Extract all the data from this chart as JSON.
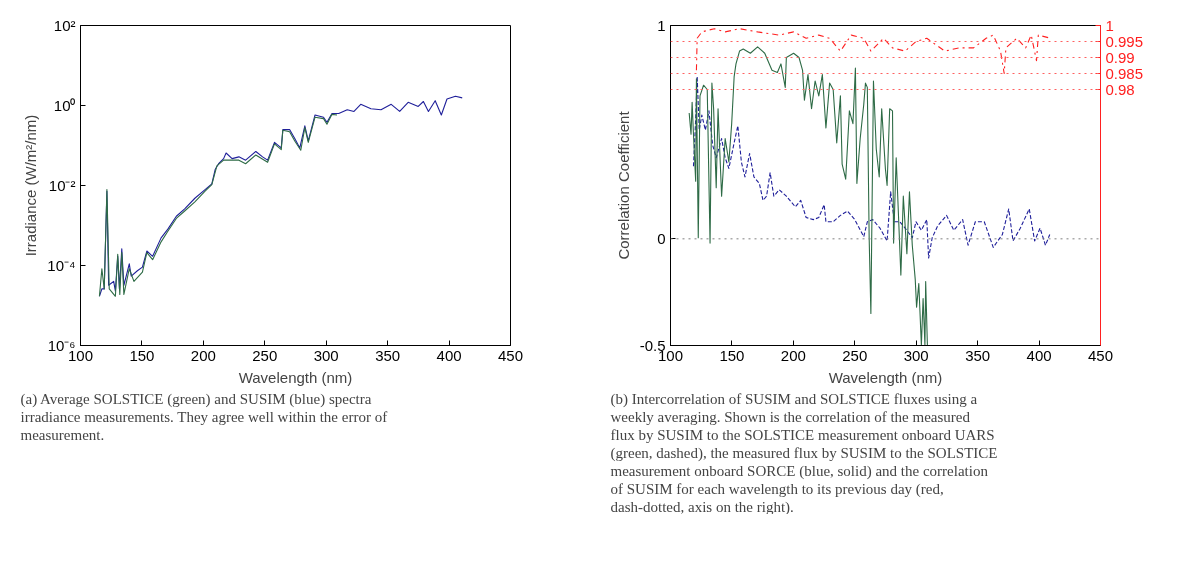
{
  "chart_data": [
    {
      "type": "line",
      "xlabel": "Wavelength (nm)",
      "ylabel": "Irradiance (W/m²/nm)",
      "log": "y",
      "grid": false,
      "line_style": "solid",
      "marker": "none",
      "xlim": [
        100,
        450
      ],
      "xticks": [
        100,
        150,
        200,
        250,
        300,
        350,
        400,
        450
      ],
      "ylim": [
        1e-06,
        100
      ],
      "yticks": [
        {
          "value": 1e-06,
          "label": "10⁻⁶"
        },
        {
          "value": 0.0001,
          "label": "10⁻⁴"
        },
        {
          "value": 0.01,
          "label": "10⁻²"
        },
        {
          "value": 1,
          "label": "10⁰"
        },
        {
          "value": 100,
          "label": "10²"
        }
      ],
      "series": [
        {
          "color": "#1f1f9a",
          "x": [
            115.4,
            117.4,
            119.3,
            121.5,
            122.9,
            127,
            128.4,
            130.3,
            131.7,
            133.6,
            135.3,
            139.7,
            141.3,
            146.3,
            150.4,
            154,
            158.7,
            165.6,
            171.1,
            178,
            184.8,
            193.1,
            201.4,
            206.9,
            209.6,
            212.4,
            216.5,
            218.5,
            223.4,
            228.9,
            234.4,
            242.7,
            248.2,
            252.3,
            257.9,
            263.4,
            264.7,
            270.2,
            274.4,
            278.5,
            282.6,
            285.4,
            290.9,
            297.8,
            300.6,
            304.7,
            310.2,
            317.1,
            322.6,
            328.1,
            336.4,
            344.6,
            352.9,
            359.8,
            366.7,
            374.9,
            379.1,
            383.2,
            388.7,
            393.7,
            398.3,
            405.2,
            410.7
          ],
          "values": [
            1.7e-05,
            2.6e-05,
            2.6e-05,
            0.0072,
            3.2e-05,
            4e-05,
            2.3e-05,
            0.00017,
            2.6e-05,
            0.00026,
            3.2e-05,
            0.00011,
            5.4e-05,
            7.4e-05,
            9.1e-05,
            0.00023,
            0.00017,
            0.00049,
            0.00081,
            0.0017,
            0.0026,
            0.0048,
            0.0079,
            0.011,
            0.025,
            0.035,
            0.047,
            0.065,
            0.047,
            0.052,
            0.043,
            0.071,
            0.052,
            0.043,
            0.12,
            0.087,
            0.25,
            0.25,
            0.15,
            0.087,
            0.31,
            0.13,
            0.58,
            0.51,
            0.38,
            0.63,
            0.63,
            0.78,
            0.71,
            1.07,
            0.83,
            0.78,
            1.07,
            0.71,
            1.2,
            0.95,
            1.26,
            0.71,
            1.32,
            0.58,
            1.45,
            1.7,
            1.55
          ]
        },
        {
          "color": "#2e6b46",
          "x": [
            115.4,
            117.4,
            119.3,
            121.5,
            123.4,
            128.4,
            130.3,
            132,
            133.6,
            135.3,
            139.7,
            143.5,
            150.4,
            154,
            158.7,
            165.6,
            171.1,
            178,
            184.8,
            193.1,
            201.4,
            206.9,
            211,
            216.5,
            223.4,
            228.9,
            234.4,
            242.7,
            252.3,
            257.9,
            263.4,
            264.7,
            270.2,
            274.4,
            279.3,
            282.6,
            285.4,
            290.9,
            297.8,
            300.6,
            304.7,
            308.8
          ],
          "values": [
            1.7e-05,
            8.3e-05,
            2.6e-05,
            0.0079,
            2.6e-05,
            1.7e-05,
            0.00019,
            1.9e-05,
            0.00021,
            1.9e-05,
            8.3e-05,
            4e-05,
            6.8e-05,
            0.00021,
            0.00014,
            0.00039,
            0.00072,
            0.0015,
            0.0023,
            0.0039,
            0.0072,
            0.0105,
            0.031,
            0.043,
            0.043,
            0.043,
            0.035,
            0.058,
            0.038,
            0.11,
            0.079,
            0.24,
            0.22,
            0.13,
            0.076,
            0.28,
            0.12,
            0.51,
            0.47,
            0.34,
            0.6,
            0.58
          ]
        }
      ],
      "annotations": [
        "(a) Average SOLSTICE (green) and SUSIM (blue) spectra irradiance measurements. They agree well within the error of measurement."
      ]
    },
    {
      "type": "line",
      "xlabel": "Wavelength (nm)",
      "ylabel": "Correlation Coefficient",
      "grid": false,
      "marker": "none",
      "xlim": [
        100,
        450
      ],
      "xticks": [
        100,
        150,
        200,
        250,
        300,
        350,
        400,
        450
      ],
      "ylim": [
        -0.5,
        1
      ],
      "yticks": [
        -0.5,
        0,
        1
      ],
      "y2lim": [
        0.9,
        1
      ],
      "y2ticks": [
        0.98,
        0.985,
        0.99,
        0.995,
        1
      ],
      "ref_lines": [
        {
          "axis": "y",
          "value": 0,
          "color": "#808080",
          "line_style": "dotted"
        },
        {
          "axis": "y2",
          "value": 0.98,
          "color": "#ff6060",
          "line_style": "dotted"
        },
        {
          "axis": "y2",
          "value": 0.985,
          "color": "#ff6060",
          "line_style": "dotted"
        },
        {
          "axis": "y2",
          "value": 0.99,
          "color": "#ff6060",
          "line_style": "dotted"
        },
        {
          "axis": "y2",
          "value": 0.995,
          "color": "#ff6060",
          "line_style": "dotted"
        }
      ],
      "series": [
        {
          "color": "#1f1f9a",
          "line_style": "dashed",
          "x": [
            118.7,
            120.5,
            121.7,
            123.4,
            125.5,
            128.4,
            131.3,
            134.3,
            137.2,
            141.6,
            144.5,
            147.5,
            151.8,
            154.8,
            157.7,
            160.6,
            164.4,
            167.9,
            172.3,
            175.3,
            178.2,
            181.1,
            184.1,
            188.5,
            194.3,
            201.6,
            206,
            210.4,
            216.3,
            220.7,
            225.1,
            226.5,
            232.4,
            238.3,
            244.1,
            250,
            257.3,
            260.2,
            264.6,
            270.5,
            276.3,
            279.2,
            282.2,
            286.6,
            291,
            296.8,
            299.8,
            304.2,
            308.6,
            310.1,
            313,
            317.4,
            324.7,
            330.6,
            337.8,
            342.2,
            348.1,
            355.4,
            362.7,
            370.1,
            375.3,
            378.8,
            384.7,
            392,
            396.4,
            400.8,
            405.2,
            408.7
          ],
          "values": [
            0.34,
            0.56,
            0.76,
            0.51,
            0.58,
            0.51,
            0.6,
            0.44,
            0.38,
            0.47,
            0.38,
            0.33,
            0.45,
            0.53,
            0.36,
            0.29,
            0.4,
            0.29,
            0.26,
            0.18,
            0.2,
            0.31,
            0.2,
            0.23,
            0.2,
            0.15,
            0.18,
            0.1,
            0.09,
            0.1,
            0.16,
            0.08,
            0.08,
            0.11,
            0.13,
            0.09,
            0.01,
            0.08,
            0.09,
            0.05,
            -0.01,
            0.22,
            0.08,
            0.08,
            0.05,
            0.005,
            0.08,
            0.04,
            0.09,
            -0.09,
            0.005,
            0.06,
            0.11,
            0.04,
            0.09,
            -0.03,
            0.08,
            0.08,
            -0.04,
            0.02,
            0.14,
            -0.01,
            0.05,
            0.14,
            -0.01,
            0.05,
            -0.03,
            0.02
          ]
        },
        {
          "color": "#2e6b46",
          "line_style": "solid",
          "x": [
            115.2,
            116.7,
            117.6,
            118.7,
            120.5,
            121.1,
            122.6,
            124,
            126.9,
            129.9,
            132.2,
            133.7,
            135.1,
            137.2,
            138.7,
            141.6,
            144.5,
            147.5,
            149.8,
            151.8,
            153.3,
            156.2,
            159.2,
            165,
            170.9,
            176.7,
            182.6,
            187,
            189.9,
            193.4,
            194.3,
            200.2,
            204.6,
            207.5,
            209,
            211.9,
            214.8,
            217.7,
            220.7,
            223.6,
            226.5,
            229.5,
            232.4,
            235.3,
            238.3,
            239.7,
            242.6,
            245.6,
            248.5,
            250.5,
            251.7,
            254.4,
            257.3,
            258.7,
            260.2,
            261.7,
            263.1,
            265.2,
            267.5,
            269.9,
            271.9,
            274.9,
            276.3,
            278.4,
            280.7,
            281.6,
            283.7,
            287.5,
            289.5,
            292.4,
            294.5,
            296.8,
            299.2,
            300.3,
            302.1,
            304.2,
            305.6,
            307.1,
            307.7,
            309.1
          ],
          "values": [
            0.59,
            0.49,
            0.64,
            0.49,
            0.27,
            0.75,
            0.005,
            0.67,
            0.72,
            0.7,
            -0.02,
            0.73,
            0.61,
            0.24,
            0.61,
            0.2,
            0.47,
            0.36,
            0.54,
            0.76,
            0.82,
            0.88,
            0.89,
            0.87,
            0.9,
            0.87,
            0.79,
            0.78,
            0.82,
            0.71,
            0.85,
            0.87,
            0.85,
            0.79,
            0.65,
            0.77,
            0.61,
            0.74,
            0.67,
            0.77,
            0.52,
            0.73,
            0.7,
            0.45,
            0.67,
            0.35,
            0.28,
            0.6,
            0.54,
            0.8,
            0.26,
            0.47,
            0.63,
            0.73,
            0.71,
            0.005,
            -0.35,
            0.74,
            0.42,
            0.29,
            0.61,
            0.33,
            0.25,
            0.61,
            0.6,
            -0.02,
            0.38,
            -0.17,
            0.2,
            -0.07,
            0.22,
            -0.03,
            -0.19,
            -0.32,
            -0.21,
            -0.5,
            -0.28,
            -0.5,
            -0.2,
            -0.5
          ]
        },
        {
          "color": "#ff2020",
          "line_style": "dashdot",
          "axis": "y2",
          "x": [
            121.1,
            121.7,
            125.5,
            135.7,
            144.5,
            156.2,
            170.9,
            188.5,
            200.2,
            210.4,
            220.7,
            229.5,
            238.3,
            247.1,
            257.3,
            263.1,
            273.4,
            280.7,
            291,
            299.8,
            308.6,
            323.2,
            334.9,
            346.7,
            356.9,
            362.7,
            368.6,
            371.6,
            373,
            381.8,
            389.1,
            393.6,
            397.9,
            399.4,
            409.6
          ],
          "values": [
            0.986,
            0.996,
            0.998,
            0.999,
            0.998,
            0.999,
            0.998,
            0.997,
            0.998,
            0.996,
            0.997,
            0.996,
            0.992,
            0.997,
            0.996,
            0.992,
            0.996,
            0.993,
            0.992,
            0.995,
            0.996,
            0.992,
            0.993,
            0.993,
            0.996,
            0.997,
            0.992,
            0.985,
            0.993,
            0.996,
            0.993,
            0.997,
            0.989,
            0.997,
            0.996
          ]
        }
      ],
      "annotations": [
        "(b) Intercorrelation of SUSIM and SOLSTICE fluxes using a weekly averaging. Shown is the correlation of the measured flux by SUSIM to the SOLSTICE measurement onboard UARS (green, dashed), the measured flux by SUSIM to the SOLSTICE measurement onboard SORCE (blue, solid) and the correlation of SUSIM for each wavelength to its previous day (red, dash-dotted, axis on the right)."
      ]
    }
  ]
}
